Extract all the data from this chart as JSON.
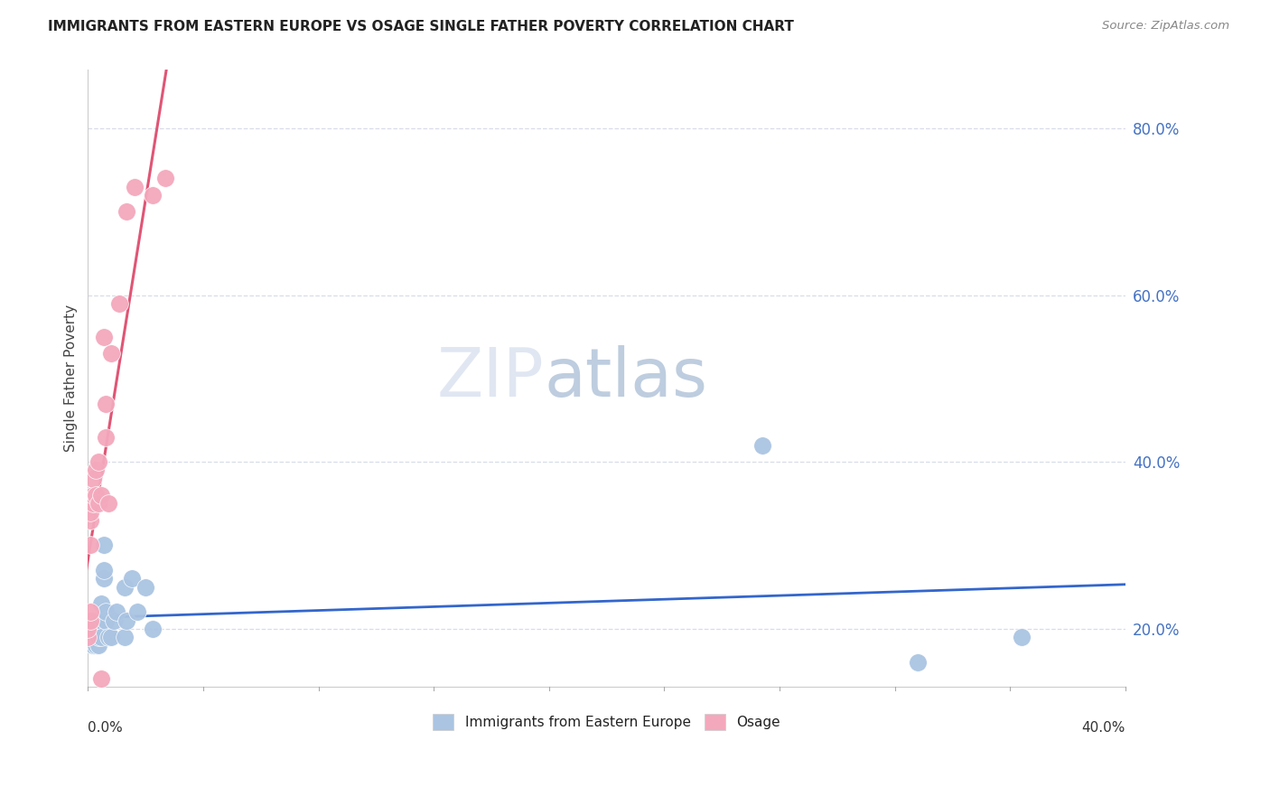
{
  "title": "IMMIGRANTS FROM EASTERN EUROPE VS OSAGE SINGLE FATHER POVERTY CORRELATION CHART",
  "source": "Source: ZipAtlas.com",
  "ylabel": "Single Father Poverty",
  "legend_blue_label": "Immigrants from Eastern Europe",
  "legend_pink_label": "Osage",
  "blue_color": "#aac4e2",
  "pink_color": "#f4a8bc",
  "trendline_blue_color": "#3366cc",
  "trendline_pink_color": "#e05575",
  "trendline_gray_color": "#b0b8c8",
  "watermark_zip": "ZIP",
  "watermark_atlas": "atlas",
  "right_yticks": [
    0.2,
    0.4,
    0.6,
    0.8
  ],
  "right_yticklabels": [
    "20.0%",
    "40.0%",
    "60.0%",
    "80.0%"
  ],
  "blue_x": [
    0.0,
    0.001,
    0.001,
    0.001,
    0.002,
    0.002,
    0.002,
    0.002,
    0.003,
    0.003,
    0.004,
    0.004,
    0.005,
    0.005,
    0.005,
    0.006,
    0.006,
    0.006,
    0.007,
    0.007,
    0.008,
    0.009,
    0.01,
    0.011,
    0.014,
    0.014,
    0.015,
    0.017,
    0.019,
    0.022,
    0.025,
    0.26,
    0.32,
    0.36
  ],
  "blue_y": [
    0.2,
    0.19,
    0.2,
    0.21,
    0.18,
    0.18,
    0.19,
    0.21,
    0.18,
    0.2,
    0.18,
    0.19,
    0.21,
    0.23,
    0.19,
    0.26,
    0.27,
    0.3,
    0.21,
    0.22,
    0.19,
    0.19,
    0.21,
    0.22,
    0.19,
    0.25,
    0.21,
    0.26,
    0.22,
    0.25,
    0.2,
    0.42,
    0.16,
    0.19
  ],
  "pink_x": [
    0.0,
    0.0,
    0.001,
    0.001,
    0.001,
    0.001,
    0.001,
    0.002,
    0.002,
    0.002,
    0.003,
    0.003,
    0.004,
    0.004,
    0.005,
    0.005,
    0.006,
    0.007,
    0.007,
    0.008,
    0.009,
    0.012,
    0.015,
    0.018,
    0.025,
    0.03
  ],
  "pink_y": [
    0.19,
    0.2,
    0.21,
    0.22,
    0.3,
    0.33,
    0.34,
    0.35,
    0.36,
    0.38,
    0.36,
    0.39,
    0.35,
    0.4,
    0.14,
    0.36,
    0.55,
    0.43,
    0.47,
    0.35,
    0.53,
    0.59,
    0.7,
    0.73,
    0.72,
    0.74
  ],
  "xlim": [
    0.0,
    0.4
  ],
  "ylim": [
    0.13,
    0.87
  ],
  "grid_yvals": [
    0.2,
    0.4,
    0.6,
    0.8
  ],
  "pink_trend_x_start": -0.003,
  "pink_trend_x_end": 0.036
}
